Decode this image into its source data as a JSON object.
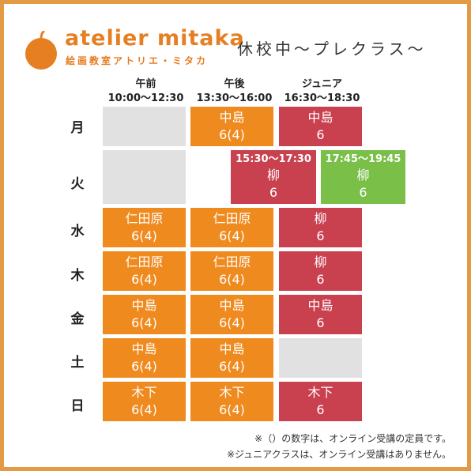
{
  "brand": {
    "name": "atelier mitaka",
    "sub": "絵画教室アトリエ・ミタカ"
  },
  "subtitle": "休校中〜プレクラス〜",
  "columns": [
    {
      "name": "午前",
      "time": "10:00〜12:30"
    },
    {
      "name": "午後",
      "time": "13:30〜16:00"
    },
    {
      "name": "ジュニア",
      "time": "16:30〜18:30"
    }
  ],
  "days": [
    "月",
    "火",
    "水",
    "木",
    "金",
    "土",
    "日"
  ],
  "schedule": {
    "mon_afternoon": {
      "teacher": "中島",
      "count": "6(4)"
    },
    "mon_junior": {
      "teacher": "中島",
      "count": "6"
    },
    "tue_red": {
      "time": "15:30〜17:30",
      "teacher": "柳",
      "count": "6"
    },
    "tue_green": {
      "time": "17:45〜19:45",
      "teacher": "柳",
      "count": "6"
    },
    "wed_morning": {
      "teacher": "仁田原",
      "count": "6(4)"
    },
    "wed_afternoon": {
      "teacher": "仁田原",
      "count": "6(4)"
    },
    "wed_junior": {
      "teacher": "柳",
      "count": "6"
    },
    "thu_morning": {
      "teacher": "仁田原",
      "count": "6(4)"
    },
    "thu_afternoon": {
      "teacher": "仁田原",
      "count": "6(4)"
    },
    "thu_junior": {
      "teacher": "柳",
      "count": "6"
    },
    "fri_morning": {
      "teacher": "中島",
      "count": "6(4)"
    },
    "fri_afternoon": {
      "teacher": "中島",
      "count": "6(4)"
    },
    "fri_junior": {
      "teacher": "中島",
      "count": "6"
    },
    "sat_morning": {
      "teacher": "中島",
      "count": "6(4)"
    },
    "sat_afternoon": {
      "teacher": "中島",
      "count": "6(4)"
    },
    "sun_morning": {
      "teacher": "木下",
      "count": "6(4)"
    },
    "sun_afternoon": {
      "teacher": "木下",
      "count": "6(4)"
    },
    "sun_junior": {
      "teacher": "木下",
      "count": "6"
    }
  },
  "notes": [
    "※（）の数字は、オンライン受講の定員です。",
    "※ジュニアクラスは、オンライン受講はありません。"
  ],
  "colors": {
    "border": "#e39a44",
    "orange": "#ef8a1f",
    "red": "#c9404f",
    "green": "#79bf48",
    "empty": "#e1e1e1"
  }
}
